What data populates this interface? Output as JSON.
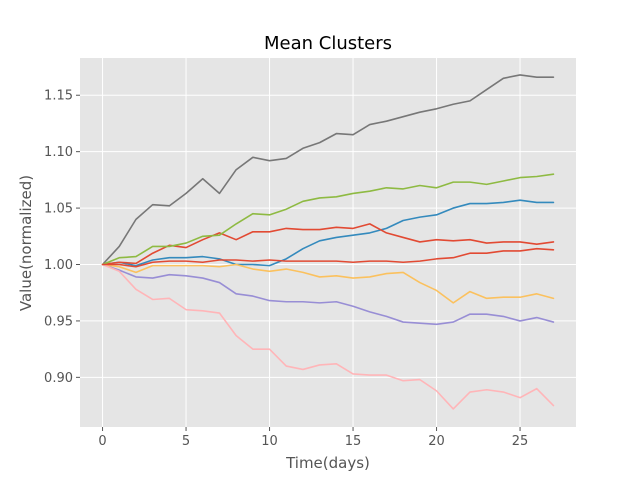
{
  "chart_data": {
    "type": "line",
    "title": "Mean Clusters",
    "xlabel": "Time(days)",
    "ylabel": "Value(normalized)",
    "xlim": [
      -1.35,
      28.35
    ],
    "ylim": [
      0.856,
      1.183
    ],
    "xticks": [
      0,
      5,
      10,
      15,
      20,
      25
    ],
    "yticks": [
      0.9,
      0.95,
      1.0,
      1.05,
      1.1,
      1.15
    ],
    "xtick_labels": [
      "0",
      "5",
      "10",
      "15",
      "20",
      "25"
    ],
    "ytick_labels": [
      "0.90",
      "0.95",
      "1.00",
      "1.05",
      "1.10",
      "1.15"
    ],
    "grid": true,
    "background": "#e5e5e5",
    "x": [
      0,
      1,
      2,
      3,
      4,
      5,
      6,
      7,
      8,
      9,
      10,
      11,
      12,
      13,
      14,
      15,
      16,
      17,
      18,
      19,
      20,
      21,
      22,
      23,
      24,
      25,
      26,
      27
    ],
    "series": [
      {
        "color": "#348abd",
        "values": [
          1.0,
          1.002,
          0.999,
          1.004,
          1.006,
          1.006,
          1.007,
          1.005,
          1.0,
          1.0,
          0.999,
          1.005,
          1.014,
          1.021,
          1.024,
          1.026,
          1.028,
          1.032,
          1.039,
          1.042,
          1.044,
          1.05,
          1.054,
          1.054,
          1.055,
          1.057,
          1.055,
          1.055
        ]
      },
      {
        "color": "#e24a33",
        "values": [
          1.0,
          1.002,
          1.001,
          1.01,
          1.017,
          1.015,
          1.022,
          1.028,
          1.022,
          1.029,
          1.029,
          1.032,
          1.031,
          1.031,
          1.033,
          1.032,
          1.036,
          1.028,
          1.024,
          1.02,
          1.022,
          1.021,
          1.022,
          1.019,
          1.02,
          1.02,
          1.018,
          1.02
        ]
      },
      {
        "color": "#988ed5",
        "values": [
          1.0,
          0.995,
          0.989,
          0.988,
          0.991,
          0.99,
          0.988,
          0.984,
          0.974,
          0.972,
          0.968,
          0.967,
          0.967,
          0.966,
          0.967,
          0.963,
          0.958,
          0.954,
          0.949,
          0.948,
          0.947,
          0.949,
          0.956,
          0.956,
          0.954,
          0.95,
          0.953,
          0.949
        ]
      },
      {
        "color": "#777777",
        "values": [
          1.0,
          1.016,
          1.04,
          1.053,
          1.052,
          1.063,
          1.076,
          1.063,
          1.084,
          1.095,
          1.092,
          1.094,
          1.103,
          1.108,
          1.116,
          1.115,
          1.124,
          1.127,
          1.131,
          1.135,
          1.138,
          1.142,
          1.145,
          1.155,
          1.165,
          1.168,
          1.166,
          1.166
        ]
      },
      {
        "color": "#fbc15e",
        "values": [
          1.0,
          0.998,
          0.993,
          0.999,
          0.999,
          0.999,
          0.999,
          0.998,
          1.0,
          0.996,
          0.994,
          0.996,
          0.993,
          0.989,
          0.99,
          0.988,
          0.989,
          0.992,
          0.993,
          0.984,
          0.977,
          0.966,
          0.976,
          0.97,
          0.971,
          0.971,
          0.974,
          0.97
        ]
      },
      {
        "color": "#8eba42",
        "values": [
          1.0,
          1.006,
          1.007,
          1.016,
          1.016,
          1.019,
          1.025,
          1.026,
          1.036,
          1.045,
          1.044,
          1.049,
          1.056,
          1.059,
          1.06,
          1.063,
          1.065,
          1.068,
          1.067,
          1.07,
          1.068,
          1.073,
          1.073,
          1.071,
          1.074,
          1.077,
          1.078,
          1.08
        ]
      },
      {
        "color": "#ffb5b8",
        "values": [
          1.0,
          0.994,
          0.978,
          0.969,
          0.97,
          0.96,
          0.959,
          0.957,
          0.937,
          0.925,
          0.925,
          0.91,
          0.907,
          0.911,
          0.912,
          0.903,
          0.902,
          0.902,
          0.897,
          0.898,
          0.888,
          0.872,
          0.887,
          0.889,
          0.887,
          0.882,
          0.89,
          0.875
        ]
      },
      {
        "color": "#e24a33",
        "values": [
          1.0,
          1.0,
          0.998,
          1.002,
          1.003,
          1.003,
          1.002,
          1.004,
          1.004,
          1.003,
          1.004,
          1.003,
          1.003,
          1.003,
          1.003,
          1.002,
          1.003,
          1.003,
          1.002,
          1.003,
          1.005,
          1.006,
          1.01,
          1.01,
          1.012,
          1.012,
          1.014,
          1.013
        ]
      }
    ]
  }
}
